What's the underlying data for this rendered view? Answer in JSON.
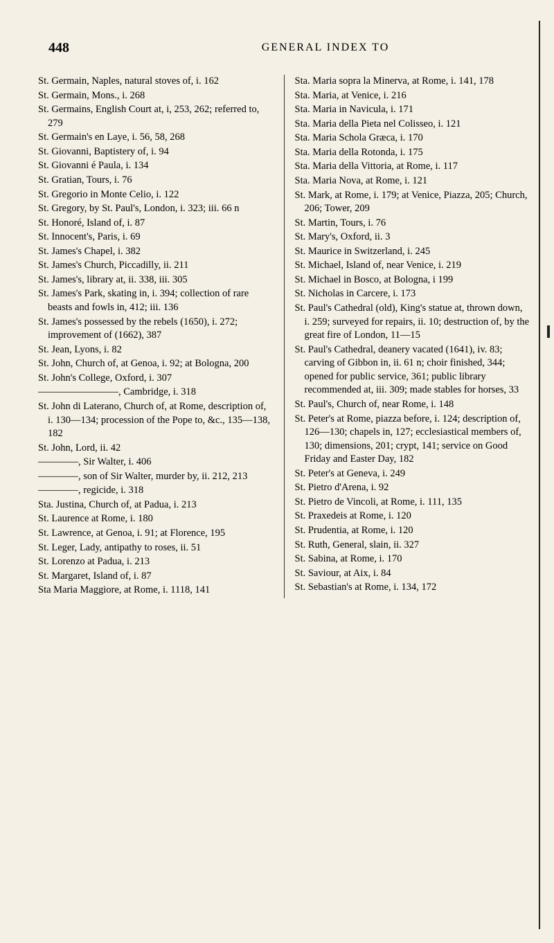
{
  "page_number": "448",
  "header": "GENERAL INDEX TO",
  "left_column": [
    "St. Germain, Naples, natural stoves of, i. 162",
    "St. Germain, Mons., i. 268",
    "St. Germains, English Court at, i, 253, 262; referred to, 279",
    "St. Germain's en Laye, i. 56, 58, 268",
    "St. Giovanni, Baptistery of, i. 94",
    "St. Giovanni é Paula, i. 134",
    "St. Gratian, Tours, i. 76",
    "St. Gregorio in Monte Celio, i. 122",
    "St. Gregory, by St. Paul's, London, i. 323; iii. 66 n",
    "St. Honoré, Island of, i. 87",
    "St. Innocent's, Paris, i. 69",
    "St. James's Chapel, i. 382",
    "St. James's Church, Piccadilly, ii. 211",
    "St. James's, library at, ii. 338, iii. 305",
    "St. James's Park, skating in, i. 394; collection of rare beasts and fowls in, 412; iii. 136",
    "St. James's possessed by the rebels (1650), i. 272; improvement of (1662), 387",
    "St. Jean, Lyons, i. 82",
    "St. John, Church of, at Genoa, i. 92; at Bologna, 200",
    "St. John's College, Oxford, i. 307",
    "————————, Cambridge, i. 318",
    "St. John di Laterano, Church of, at Rome, description of, i. 130—134; procession of the Pope to, &c., 135—138, 182",
    "St. John, Lord, ii. 42",
    "————, Sir Walter, i. 406",
    "————, son of Sir Walter, murder by, ii. 212, 213",
    "————, regicide, i. 318",
    "Sta. Justina, Church of, at Padua, i. 213",
    "St. Laurence at Rome, i. 180",
    "St. Lawrence, at Genoa, i. 91; at Florence, 195",
    "St. Leger, Lady, antipathy to roses, ii. 51",
    "St. Lorenzo at Padua, i. 213",
    "St. Margaret, Island of, i. 87",
    "Sta Maria Maggiore, at Rome, i. 1118, 141"
  ],
  "right_column": [
    "Sta. Maria sopra la Minerva, at Rome, i. 141, 178",
    "Sta. Maria, at Venice, i. 216",
    "Sta. Maria in Navicula, i. 171",
    "Sta. Maria della Pieta nel Colisseo, i. 121",
    "Sta. Maria Schola Græca, i. 170",
    "Sta. Maria della Rotonda, i. 175",
    "Sta. Maria della Vittoria, at Rome, i. 117",
    "Sta. Maria Nova, at Rome, i. 121",
    "St. Mark, at Rome, i. 179; at Venice, Piazza, 205; Church, 206; Tower, 209",
    "St. Martin, Tours, i. 76",
    "St. Mary's, Oxford, ii. 3",
    "St. Maurice in Switzerland, i. 245",
    "St. Michael, Island of, near Venice, i. 219",
    "St. Michael in Bosco, at Bologna, i 199",
    "St. Nicholas in Carcere, i. 173",
    "St. Paul's Cathedral (old), King's statue at, thrown down, i. 259; surveyed for repairs, ii. 10; destruction of, by the great fire of London, 11—15",
    "St. Paul's Cathedral, deanery vacated (1641), iv. 83; carving of Gibbon in, ii. 61 n; choir finished, 344; opened for public service, 361; public library recommended at, iii. 309; made stables for horses, 33",
    "St. Paul's, Church of, near Rome, i. 148",
    "St. Peter's at Rome, piazza before, i. 124; description of, 126—130; chapels in, 127; ecclesiastical members of, 130; dimensions, 201; crypt, 141; service on Good Friday and Easter Day, 182",
    "St. Peter's at Geneva, i. 249",
    "St. Pietro d'Arena, i. 92",
    "St. Pietro de Vincoli, at Rome, i. 111, 135",
    "St. Praxedeis at Rome, i. 120",
    "St. Prudentia, at Rome, i. 120",
    "St. Ruth, General, slain, ii. 327",
    "St. Sabina, at Rome, i. 170",
    "St. Saviour, at Aix, i. 84",
    "St. Sebastian's at Rome, i. 134, 172"
  ],
  "colors": {
    "background": "#f5f0e6",
    "text": "#1a1a1a"
  },
  "typography": {
    "body_font_size": 14.5,
    "header_font_size": 16,
    "page_number_font_size": 20
  }
}
